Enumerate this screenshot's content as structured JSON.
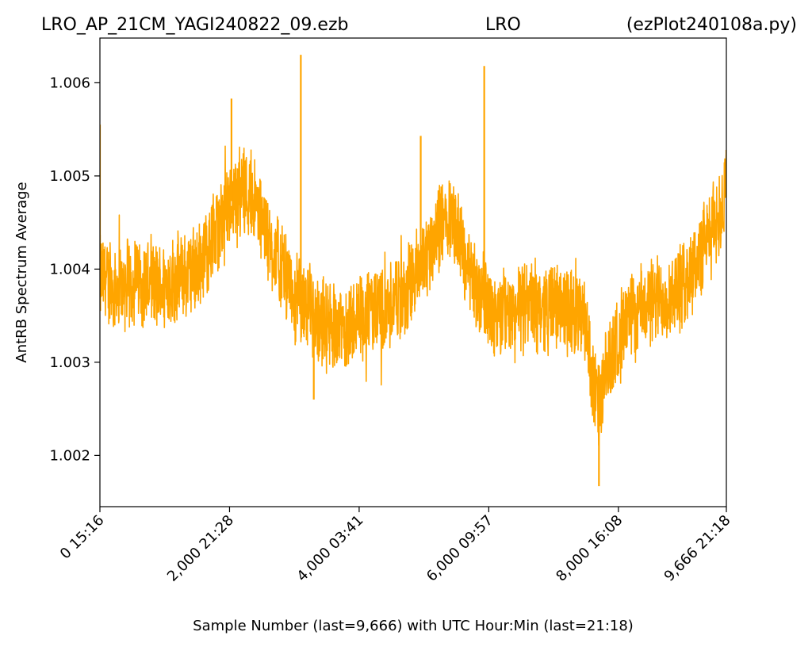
{
  "header": {
    "left": "LRO_AP_21CM_YAGI240822_09.ezb",
    "center": "LRO",
    "right": "(ezPlot240108a.py)"
  },
  "chart_data": {
    "type": "line",
    "xlabel": "Sample Number (last=9,666) with UTC Hour:Min (last=21:18)",
    "ylabel": "AntRB Spectrum Average",
    "xlim": [
      0,
      9666
    ],
    "ylim": [
      1.00145,
      1.00648
    ],
    "grid": false,
    "series_color": "#FFA500",
    "x_ticks": [
      {
        "value": 0,
        "label": "0  15:16"
      },
      {
        "value": 2000,
        "label": "2,000  21:28"
      },
      {
        "value": 4000,
        "label": "4,000  03:41"
      },
      {
        "value": 6000,
        "label": "6,000  09:57"
      },
      {
        "value": 8000,
        "label": "8,000  16:08"
      },
      {
        "value": 9666,
        "label": "9,666  21:18"
      }
    ],
    "y_ticks": [
      {
        "value": 1.002,
        "label": "1.002"
      },
      {
        "value": 1.003,
        "label": "1.003"
      },
      {
        "value": 1.004,
        "label": "1.004"
      },
      {
        "value": 1.005,
        "label": "1.005"
      },
      {
        "value": 1.006,
        "label": "1.006"
      }
    ],
    "series": [
      {
        "points": [
          [
            0,
            1.0039
          ],
          [
            300,
            1.0038
          ],
          [
            600,
            1.0039
          ],
          [
            900,
            1.0038
          ],
          [
            1200,
            1.0039
          ],
          [
            1500,
            1.004
          ],
          [
            1800,
            1.0044
          ],
          [
            2000,
            1.0047
          ],
          [
            2200,
            1.0049
          ],
          [
            2400,
            1.0047
          ],
          [
            2600,
            1.0043
          ],
          [
            2800,
            1.004
          ],
          [
            3000,
            1.0037
          ],
          [
            3200,
            1.0036
          ],
          [
            3500,
            1.0034
          ],
          [
            3800,
            1.0034
          ],
          [
            4100,
            1.0035
          ],
          [
            4400,
            1.0036
          ],
          [
            4700,
            1.0037
          ],
          [
            5000,
            1.0041
          ],
          [
            5200,
            1.0044
          ],
          [
            5400,
            1.0046
          ],
          [
            5600,
            1.0042
          ],
          [
            5800,
            1.0038
          ],
          [
            6000,
            1.0036
          ],
          [
            6300,
            1.0035
          ],
          [
            6600,
            1.0036
          ],
          [
            6900,
            1.0036
          ],
          [
            7200,
            1.0036
          ],
          [
            7400,
            1.0035
          ],
          [
            7500,
            1.0034
          ],
          [
            7600,
            1.0028
          ],
          [
            7700,
            1.0025
          ],
          [
            7900,
            1.0031
          ],
          [
            8100,
            1.0034
          ],
          [
            8400,
            1.0036
          ],
          [
            8700,
            1.0037
          ],
          [
            9000,
            1.0038
          ],
          [
            9300,
            1.0042
          ],
          [
            9500,
            1.0045
          ],
          [
            9666,
            1.0048
          ]
        ],
        "noise_amplitude": 0.00055,
        "spikes": [
          [
            0,
            1.00555
          ],
          [
            2030,
            1.00583
          ],
          [
            3100,
            1.0063
          ],
          [
            4950,
            1.00543
          ],
          [
            5930,
            1.00618
          ],
          [
            7700,
            1.00167
          ],
          [
            3300,
            1.0026
          ],
          [
            9666,
            1.00528
          ]
        ]
      }
    ]
  }
}
